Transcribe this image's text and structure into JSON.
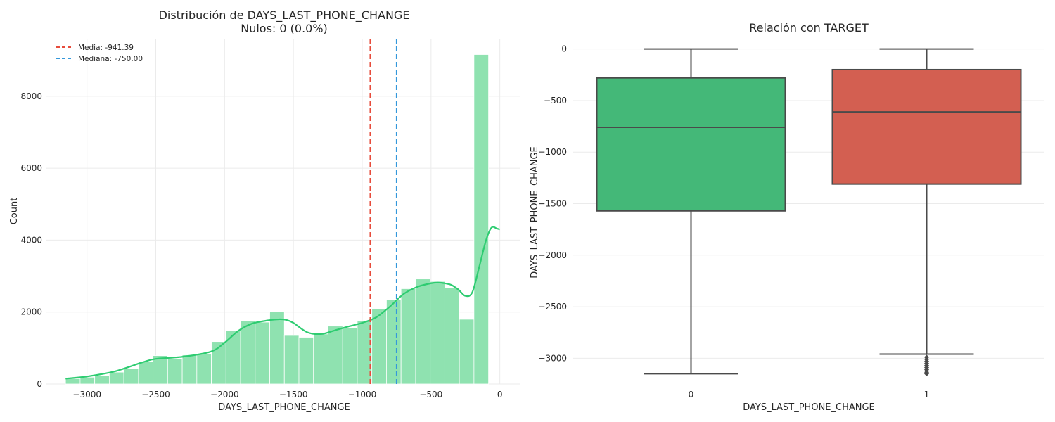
{
  "colors": {
    "hist_fill": "#8fe2b0",
    "kde_line": "#2ecc71",
    "mean_line": "#e74c3c",
    "median_line": "#3498db",
    "box_0": "#44b878",
    "box_1": "#d35f51",
    "box_stroke": "#4a4a4a"
  },
  "chart_data": [
    {
      "type": "bar",
      "subtype": "histogram",
      "title": "Distribución de DAYS_LAST_PHONE_CHANGE",
      "subtitle": "Nulos: 0 (0.0%)",
      "xlabel": "DAYS_LAST_PHONE_CHANGE",
      "ylabel": "Count",
      "xlim": [
        -3300,
        150
      ],
      "ylim": [
        0,
        9600
      ],
      "xticks": [
        -3000,
        -2500,
        -2000,
        -1500,
        -1000,
        -500,
        0
      ],
      "xtick_labels": [
        "−3000",
        "−2500",
        "−2000",
        "−1500",
        "−1000",
        "−500",
        "0"
      ],
      "yticks": [
        0,
        2000,
        4000,
        6000,
        8000
      ],
      "ytick_labels": [
        "0",
        "2000",
        "4000",
        "6000",
        "8000"
      ],
      "grid": true,
      "legend_position": "top-left",
      "bin_edges": [
        -3156,
        -3050,
        -2944,
        -2838,
        -2732,
        -2626,
        -2520,
        -2414,
        -2308,
        -2202,
        -2096,
        -1990,
        -1884,
        -1778,
        -1672,
        -1566,
        -1460,
        -1354,
        -1248,
        -1142,
        -1036,
        -930,
        -824,
        -718,
        -612,
        -506,
        -400,
        -294,
        -188,
        -82,
        0
      ],
      "counts": [
        150,
        190,
        240,
        330,
        420,
        620,
        790,
        700,
        810,
        830,
        1180,
        1480,
        1760,
        1720,
        2010,
        1350,
        1300,
        1390,
        1610,
        1560,
        1760,
        2100,
        2340,
        2650,
        2920,
        2850,
        2670,
        1800,
        9160,
        0
      ],
      "kde": {
        "x": [
          -3156,
          -3000,
          -2800,
          -2600,
          -2500,
          -2300,
          -2100,
          -2000,
          -1900,
          -1800,
          -1700,
          -1600,
          -1550,
          -1500,
          -1400,
          -1300,
          -1200,
          -1100,
          -1000,
          -900,
          -800,
          -700,
          -600,
          -500,
          -450,
          -400,
          -350,
          -300,
          -250,
          -200,
          -150,
          -100,
          -60,
          -20,
          0
        ],
        "y": [
          150,
          210,
          350,
          600,
          700,
          760,
          900,
          1150,
          1480,
          1680,
          1760,
          1800,
          1780,
          1700,
          1440,
          1390,
          1490,
          1600,
          1700,
          1850,
          2150,
          2500,
          2700,
          2800,
          2820,
          2800,
          2750,
          2620,
          2450,
          2550,
          3250,
          4000,
          4350,
          4320,
          4300
        ]
      },
      "vlines": [
        {
          "name": "Media: -941.39",
          "x": -941.39
        },
        {
          "name": "Mediana: -750.00",
          "x": -750.0
        }
      ]
    },
    {
      "type": "box",
      "title": "Relación con TARGET",
      "xlabel": "DAYS_LAST_PHONE_CHANGE",
      "ylabel": "DAYS_LAST_PHONE_CHANGE",
      "categories": [
        "0",
        "1"
      ],
      "ylim": [
        -3250,
        100
      ],
      "yticks": [
        0,
        -500,
        -1000,
        -1500,
        -2000,
        -2500,
        -3000
      ],
      "ytick_labels": [
        "0",
        "−500",
        "−1000",
        "−1500",
        "−2000",
        "−2500",
        "−3000"
      ],
      "grid": true,
      "boxes": [
        {
          "category": "0",
          "whisker_low": -3150,
          "q1": -1570,
          "median": -760,
          "q3": -280,
          "whisker_high": 0,
          "outliers": []
        },
        {
          "category": "1",
          "whisker_low": -2960,
          "q1": -1310,
          "median": -610,
          "q3": -200,
          "whisker_high": 0,
          "outliers": [
            -2990,
            -3010,
            -3030,
            -3050,
            -3070,
            -3090,
            -3110,
            -3125,
            -3140,
            -3150
          ]
        }
      ]
    }
  ]
}
